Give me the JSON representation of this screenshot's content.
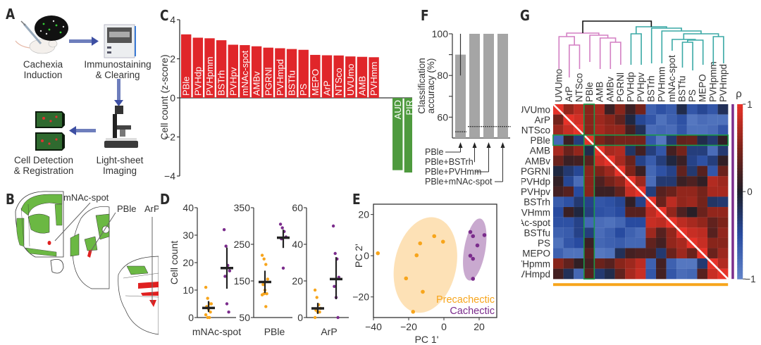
{
  "panels": {
    "A": {
      "letter": "A",
      "steps": [
        {
          "label_1": "Cachexia",
          "label_2": "Induction"
        },
        {
          "label_1": "Immunostaining",
          "label_2": "& Clearing"
        },
        {
          "label_1": "Light-sheet",
          "label_2": "Imaging"
        },
        {
          "label_1": "Cell Detection",
          "label_2": "& Registration"
        }
      ]
    },
    "B": {
      "letter": "B",
      "annotations": [
        "mNAc-spot",
        "PBle",
        "ArP"
      ]
    },
    "C": {
      "letter": "C"
    },
    "D": {
      "letter": "D"
    },
    "E": {
      "letter": "E"
    },
    "F": {
      "letter": "F"
    },
    "G": {
      "letter": "G"
    }
  },
  "colors": {
    "up_bar": "#e0262a",
    "down_bar": "#4e9a3e",
    "precachectic": "#f7a51c",
    "cachectic": "#7b2c8c",
    "precachectic_ellipse": "#fde1b6",
    "cachectic_ellipse": "#c9a9cf",
    "pink_cluster": "#d37fc3",
    "teal_cluster": "#3aa9a6",
    "highlight_box": "#1a9a4a",
    "grey_bar": "#a5a5a5"
  },
  "chart_data": [
    {
      "id": "C",
      "type": "bar",
      "ylabel": "Cell count (z-score)",
      "ylim": [
        -4,
        4
      ],
      "yticks": [
        4,
        2,
        0,
        -2,
        -4
      ],
      "categories": [
        "PBle",
        "PVHdp",
        "PVHpmm",
        "BSTrh",
        "PVHpv",
        "mNAc-spot",
        "AMBv",
        "PGRNl",
        "PVHmpd",
        "BSTfu",
        "PS",
        "MEPO",
        "ArP",
        "NTSco",
        "UVUmo",
        "AMB",
        "PVHmm",
        "AUD",
        "PIR",
        "VIS"
      ],
      "values": [
        3.25,
        3.08,
        3.05,
        2.95,
        2.72,
        2.7,
        2.64,
        2.57,
        2.54,
        2.5,
        2.46,
        2.2,
        2.18,
        2.17,
        2.12,
        2.1,
        2.08,
        -3.7,
        -3.82,
        -3.86
      ]
    },
    {
      "id": "D",
      "type": "scatter",
      "ylabel": "Cell count",
      "groups": [
        "Precachectic",
        "Cachectic"
      ],
      "subplots": [
        {
          "name": "mNAc-spot",
          "ylim": [
            0,
            40
          ],
          "yticks": [
            0,
            10,
            20,
            30,
            40
          ],
          "precachectic": {
            "points": [
              11,
              7,
              5,
              5,
              4,
              3,
              2,
              1,
              0,
              0
            ],
            "mean": 3.5,
            "err": [
              2,
              6
            ]
          },
          "cachectic": {
            "points": [
              32,
              26,
              19,
              17,
              15,
              5,
              2
            ],
            "mean": 18,
            "err": [
              10.5,
              25.5
            ]
          }
        },
        {
          "name": "PBle",
          "ylim": [
            50,
            350
          ],
          "yticks": [
            50,
            150,
            250,
            350
          ],
          "ytick_labels": [
            "50",
            "150",
            "250",
            "350"
          ],
          "precachectic": {
            "points": [
              220,
              210,
              195,
              155,
              140,
              125,
              115,
              112,
              115,
              80
            ],
            "mean": 147,
            "err": [
              117,
              178
            ]
          },
          "cachectic": {
            "points": [
              305,
              295,
              285,
              270,
              265,
              185
            ],
            "mean": 268,
            "err": [
              240,
              290
            ]
          }
        },
        {
          "name": "ArP",
          "ylim": [
            0,
            60
          ],
          "yticks": [
            0,
            20,
            40,
            60
          ],
          "precachectic": {
            "points": [
              15,
              11,
              7,
              5,
              4,
              3,
              3,
              0
            ],
            "mean": 5,
            "err": [
              2,
              8
            ]
          },
          "cachectic": {
            "points": [
              50,
              35,
              32,
              22,
              17,
              11,
              0
            ],
            "mean": 21,
            "err": [
              10,
              33
            ]
          }
        }
      ]
    },
    {
      "id": "E",
      "type": "scatter",
      "xlabel": "PC 1'",
      "ylabel": "PC 2'",
      "xlim": [
        -40,
        30
      ],
      "ylim": [
        -30,
        25
      ],
      "xticks": [
        -40,
        -20,
        0,
        20
      ],
      "yticks": [
        -20,
        0,
        20
      ],
      "series": [
        {
          "name": "Precachectic",
          "x": [
            -37.5,
            -5.5,
            -0.5,
            -13.5,
            -15.5,
            -21.5,
            -12.0,
            -17.5
          ],
          "y": [
            1.2,
            9.5,
            6.8,
            6.0,
            0.2,
            -11,
            -17.5,
            -27.2
          ]
        },
        {
          "name": "Cachectic",
          "x": [
            15,
            16.5,
            23,
            19,
            15,
            16.5,
            16.5
          ],
          "y": [
            11.5,
            9.5,
            10,
            5,
            0,
            -1.5,
            -11.2
          ]
        }
      ],
      "legend": "bottom-right"
    },
    {
      "id": "F",
      "type": "bar",
      "ylabel": "Classification accuracy (%)",
      "ylim": [
        50,
        100
      ],
      "yticks": [
        60,
        80,
        100
      ],
      "categories": [
        "PBle",
        "PBle+BSTrh",
        "PBle+PVHmm",
        "PBle+mNAc-spot"
      ],
      "values": [
        90,
        100,
        100,
        100
      ],
      "error": [
        [
          80,
          100
        ],
        null,
        null,
        null
      ],
      "chance_levels": [
        53,
        55.5,
        55.5,
        55.5
      ]
    },
    {
      "id": "G",
      "type": "heatmap",
      "colorbar_label": "ρ",
      "colorbar_ticks": [
        "1",
        "0",
        "−1"
      ],
      "range": [
        -1,
        1
      ],
      "labels": [
        "UVUmo",
        "ArP",
        "NTSco",
        "PBle",
        "AMB",
        "AMBv",
        "PGRNl",
        "PVHdp",
        "PVHpv",
        "BSTrh",
        "PVHmm",
        "mNAc-spot",
        "BSTfu",
        "PS",
        "MEPO",
        "PVHpmm",
        "PVHmpd"
      ],
      "highlight": "PBle",
      "clusters": [
        {
          "name": "pink",
          "members": [
            "UVUmo",
            "ArP",
            "NTSco",
            "PBle",
            "AMB",
            "AMBv",
            "PGRNl"
          ]
        },
        {
          "name": "teal",
          "members": [
            "PVHdp",
            "PVHpv",
            "BSTrh",
            "PVHmm",
            "mNAc-spot",
            "BSTfu",
            "PS",
            "MEPO",
            "PVHpmm",
            "PVHmpd"
          ]
        }
      ],
      "values": [
        [
          1,
          0.6,
          0.8,
          0.55,
          0.7,
          0.15,
          0.55,
          0.15,
          0.45,
          -0.7,
          -0.55,
          -0.65,
          -0.15,
          -0.6,
          -0.45,
          -0.6,
          -0.2
        ],
        [
          0.45,
          1,
          0.9,
          0.55,
          0.65,
          0.55,
          0.35,
          -0.1,
          -0.45,
          -0.6,
          -0.85,
          -0.7,
          -0.55,
          -0.9,
          -0.8,
          -0.85,
          -0.85
        ],
        [
          0.65,
          0.85,
          1,
          0.55,
          0.7,
          0.6,
          0.6,
          0.2,
          -0.2,
          -0.8,
          -0.75,
          -0.8,
          -0.6,
          -0.85,
          -0.85,
          -0.8,
          -0.6
        ],
        [
          -0.75,
          0.15,
          -0.35,
          1,
          0.5,
          0.35,
          0.45,
          0.45,
          0.45,
          -0.6,
          -0.9,
          -0.3,
          0.35,
          0.4,
          -0.15,
          -0.3,
          0.1
        ],
        [
          0.7,
          0.4,
          0.6,
          -0.15,
          1,
          0.7,
          0.75,
          -0.25,
          0.2,
          -0.35,
          -0.6,
          0.2,
          0.45,
          -0.35,
          -0.35,
          -0.8,
          -0.3
        ],
        [
          0.4,
          0.15,
          0.2,
          0.3,
          0.85,
          1,
          0.7,
          0.4,
          -0.4,
          -0.65,
          -0.35,
          -0.1,
          0.15,
          -0.4,
          -0.55,
          -0.35,
          0.1
        ],
        [
          -0.1,
          -0.3,
          -0.45,
          0.55,
          0.5,
          0.65,
          1,
          0.5,
          0.15,
          -0.75,
          -0.55,
          -0.4,
          0.35,
          -0.3,
          0.3,
          -0.6,
          0.4
        ],
        [
          0.1,
          -0.45,
          -0.8,
          0.55,
          0.25,
          0.45,
          0.6,
          1,
          0.65,
          -0.8,
          -0.3,
          -0.3,
          0.15,
          0.25,
          0.1,
          0.75,
          0.65
        ],
        [
          0.2,
          0.3,
          -0.5,
          0.55,
          0.15,
          0.15,
          0.35,
          0.85,
          1,
          -0.35,
          0.3,
          0.4,
          0.6,
          0.6,
          0.45,
          0.7,
          0.7
        ],
        [
          -0.65,
          -0.55,
          -0.3,
          -0.4,
          -0.6,
          -0.55,
          -0.45,
          0.1,
          -0.4,
          1,
          0.4,
          0.8,
          0.6,
          0.65,
          0.45,
          -0.25,
          -0.3
        ],
        [
          -0.5,
          0.15,
          -0.1,
          -0.35,
          -0.55,
          -0.6,
          -0.5,
          0.3,
          0.3,
          0.8,
          1,
          0.6,
          0.25,
          0.05,
          0.4,
          0.6,
          0.6
        ],
        [
          -0.55,
          -0.55,
          -0.4,
          -0.75,
          -0.8,
          -0.85,
          -0.75,
          -0.5,
          -0.5,
          0.85,
          0.8,
          1,
          0.8,
          0.7,
          0.6,
          0.35,
          0.5
        ],
        [
          -0.7,
          -0.65,
          -0.4,
          -0.35,
          -0.8,
          -0.7,
          -0.5,
          -0.7,
          -0.8,
          0.65,
          0.3,
          0.6,
          1,
          0.85,
          0.8,
          0.3,
          0.6
        ],
        [
          -0.85,
          -0.6,
          -0.5,
          0.15,
          -0.75,
          -0.7,
          -0.65,
          -0.75,
          -0.75,
          0.35,
          0.2,
          0.6,
          0.7,
          1,
          0.85,
          0.55,
          0.55
        ],
        [
          -0.7,
          -0.85,
          -0.85,
          0.3,
          -0.9,
          -0.85,
          -0.2,
          0.2,
          0.25,
          0.25,
          -0.3,
          0.4,
          0.65,
          0.4,
          1,
          0.4,
          0.65
        ],
        [
          0.55,
          0.35,
          0.1,
          0.2,
          0.4,
          0.3,
          0.55,
          0.65,
          0.8,
          -0.7,
          0.2,
          -0.7,
          -0.9,
          -0.9,
          -0.3,
          1,
          0.75
        ],
        [
          0.2,
          -0.2,
          -0.75,
          0.3,
          -0.3,
          -0.15,
          0.35,
          0.7,
          0.85,
          -0.6,
          0.2,
          -0.6,
          -0.8,
          -0.75,
          0.3,
          0.85,
          1
        ]
      ]
    }
  ]
}
